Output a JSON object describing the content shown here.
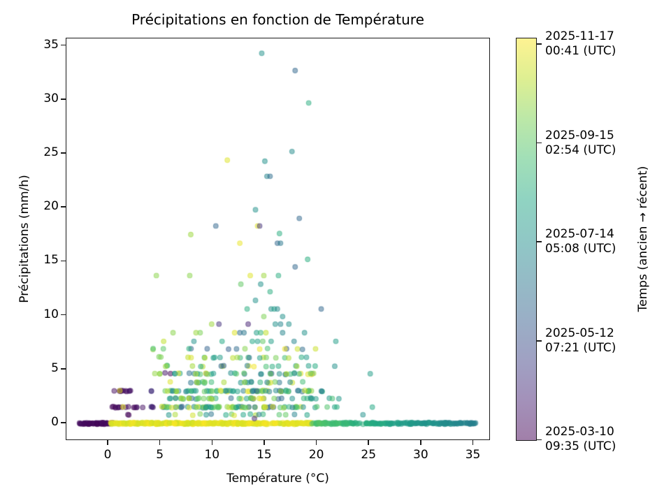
{
  "figure": {
    "background": "#ffffff"
  },
  "chart_data": {
    "type": "scatter",
    "title": "Précipitations en fonction de Température",
    "xlabel": "Température (°C)",
    "ylabel": "Précipitations (mm/h)",
    "xlim": [
      -4.02,
      36.64
    ],
    "ylim": [
      -1.62,
      35.68
    ],
    "xticks": [
      0,
      5,
      10,
      15,
      20,
      25,
      30,
      35
    ],
    "yticks": [
      0,
      5,
      10,
      15,
      20,
      25,
      30,
      35
    ],
    "grid": false,
    "marker": {
      "radius": 3.4,
      "fill_alpha": 0.5,
      "edge_alpha": 0.5,
      "edge_width": 1.1
    },
    "color_encoding": "time",
    "colormap": {
      "name": "viridis",
      "stops": [
        [
          0.0,
          "#440154"
        ],
        [
          0.1,
          "#482475"
        ],
        [
          0.2,
          "#414487"
        ],
        [
          0.3,
          "#355f8d"
        ],
        [
          0.4,
          "#2a788e"
        ],
        [
          0.5,
          "#21918c"
        ],
        [
          0.6,
          "#22a884"
        ],
        [
          0.7,
          "#44bf70"
        ],
        [
          0.8,
          "#7ad151"
        ],
        [
          0.9,
          "#bddf26"
        ],
        [
          1.0,
          "#fde725"
        ]
      ],
      "alpha": 0.5
    },
    "colorbar": {
      "label": "Temps (ancien → récent)",
      "ticks": [
        {
          "frac_from_top": 0.0156,
          "lines": [
            "2025-11-17",
            "00:41 (UTC)"
          ]
        },
        {
          "frac_from_top": 0.2617,
          "lines": [
            "2025-09-15",
            "02:54 (UTC)"
          ]
        },
        {
          "frac_from_top": 0.5078,
          "lines": [
            "2025-07-14",
            "05:08 (UTC)"
          ]
        },
        {
          "frac_from_top": 0.7539,
          "lines": [
            "2025-05-12",
            "07:21 (UTC)"
          ]
        },
        {
          "frac_from_top": 1.0,
          "lines": [
            "2025-03-10",
            "09:35 (UTC)"
          ]
        }
      ]
    },
    "points": [
      [
        14.7,
        34.3,
        0.5
      ],
      [
        17.9,
        32.7,
        0.33
      ],
      [
        19.2,
        29.7,
        0.62
      ],
      [
        17.6,
        25.2,
        0.48
      ],
      [
        11.4,
        24.4,
        0.95
      ],
      [
        15.0,
        24.3,
        0.5
      ],
      [
        15.2,
        22.9,
        0.45
      ],
      [
        15.5,
        22.9,
        0.36
      ],
      [
        14.1,
        19.8,
        0.5
      ],
      [
        18.3,
        19.0,
        0.33
      ],
      [
        10.3,
        18.3,
        0.33
      ],
      [
        14.3,
        18.3,
        0.95
      ],
      [
        14.5,
        18.3,
        0.15
      ],
      [
        7.9,
        17.5,
        0.85
      ],
      [
        16.4,
        17.6,
        0.62
      ],
      [
        12.6,
        16.7,
        0.97
      ],
      [
        16.2,
        16.7,
        0.33
      ],
      [
        16.5,
        16.7,
        0.4
      ],
      [
        19.1,
        15.2,
        0.62
      ],
      [
        17.9,
        14.5,
        0.33
      ],
      [
        4.6,
        13.7,
        0.82
      ],
      [
        7.8,
        13.7,
        0.82
      ],
      [
        13.6,
        13.7,
        0.95
      ],
      [
        14.9,
        13.7,
        0.85
      ],
      [
        16.3,
        13.7,
        0.62
      ],
      [
        12.7,
        12.9,
        0.75
      ],
      [
        14.6,
        12.9,
        0.5
      ],
      [
        15.5,
        12.2,
        0.62
      ],
      [
        14.1,
        11.4,
        0.5
      ],
      [
        13.3,
        10.6,
        0.62
      ],
      [
        15.6,
        10.6,
        0.5
      ],
      [
        15.9,
        10.6,
        0.55
      ],
      [
        16.2,
        10.6,
        0.48
      ],
      [
        20.4,
        10.6,
        0.33
      ],
      [
        14.9,
        9.9,
        0.8
      ],
      [
        16.7,
        9.9,
        0.5
      ],
      [
        9.9,
        9.2,
        0.85
      ],
      [
        10.6,
        9.2,
        0.15
      ],
      [
        13.4,
        9.2,
        0.1
      ],
      [
        16.0,
        9.2,
        0.5
      ],
      [
        16.5,
        9.2,
        0.45
      ],
      [
        17.3,
        9.2,
        0.5
      ],
      [
        6.2,
        8.4,
        0.82
      ],
      [
        8.4,
        8.4,
        0.85
      ],
      [
        8.8,
        8.4,
        0.8
      ],
      [
        12.1,
        8.4,
        0.95
      ],
      [
        12.6,
        8.4,
        0.35
      ],
      [
        13.0,
        8.4,
        0.4
      ],
      [
        14.2,
        8.4,
        0.55
      ],
      [
        14.6,
        8.4,
        0.65
      ],
      [
        15.1,
        8.4,
        0.9
      ],
      [
        16.7,
        8.4,
        0.45
      ],
      [
        18.8,
        8.4,
        0.5
      ],
      [
        5.3,
        7.6,
        0.9
      ],
      [
        8.2,
        7.6,
        0.5
      ],
      [
        10.9,
        7.6,
        0.6
      ],
      [
        13.8,
        7.6,
        0.6
      ],
      [
        14.3,
        7.6,
        0.55
      ],
      [
        14.8,
        7.6,
        0.75
      ],
      [
        15.6,
        7.6,
        0.55
      ],
      [
        17.8,
        7.6,
        0.45
      ],
      [
        21.8,
        7.6,
        0.55
      ],
      [
        21.7,
        5.3,
        0.5
      ],
      [
        25.1,
        4.6,
        0.55
      ],
      [
        24.4,
        0.8,
        0.5
      ],
      [
        25.3,
        1.5,
        0.6
      ],
      [
        14.0,
        0.45,
        0.12
      ]
    ],
    "bands": [
      {
        "y": 0.0,
        "jitter": 0.1,
        "segments": [
          {
            "x": [
              -2.8,
              0.45
            ],
            "n": 70,
            "t": [
              0.0,
              0.05
            ]
          },
          {
            "x": [
              0.2,
              19.6
            ],
            "n": 420,
            "t": [
              0.92,
              1.0
            ]
          },
          {
            "x": [
              19.5,
              35.2
            ],
            "n": 230,
            "t": [
              0.72,
              0.42
            ],
            "t_by_x": true
          }
        ]
      },
      {
        "y": 0.8,
        "jitter": 0.07,
        "segments": [
          {
            "x": [
              1.8,
              2.1
            ],
            "n": 2,
            "t": [
              0.0,
              0.05
            ]
          },
          {
            "x": [
              5.2,
              19.8
            ],
            "n": 18,
            "t": [
              0.3,
              1.0
            ]
          }
        ]
      },
      {
        "y": 1.5,
        "jitter": 0.08,
        "segments": [
          {
            "x": [
              0.3,
              3.3
            ],
            "n": 15,
            "t": [
              0.0,
              0.06
            ]
          },
          {
            "x": [
              1.3,
              1.6
            ],
            "n": 1,
            "t": [
              0.95,
              1.0
            ]
          },
          {
            "x": [
              3.9,
              4.7
            ],
            "n": 4,
            "t": [
              0.0,
              0.25
            ]
          },
          {
            "x": [
              5.0,
              19.4
            ],
            "n": 75,
            "t": [
              0.3,
              1.0
            ]
          },
          {
            "x": [
              19.6,
              22.0
            ],
            "n": 5,
            "t": [
              0.5,
              0.75
            ]
          }
        ]
      },
      {
        "y": 2.3,
        "jitter": 0.07,
        "segments": [
          {
            "x": [
              5.6,
              20.3
            ],
            "n": 45,
            "t": [
              0.3,
              1.0
            ]
          },
          {
            "x": [
              21.0,
              22.3
            ],
            "n": 3,
            "t": [
              0.5,
              0.7
            ]
          }
        ]
      },
      {
        "y": 3.0,
        "jitter": 0.08,
        "segments": [
          {
            "x": [
              0.4,
              2.2
            ],
            "n": 12,
            "t": [
              0.0,
              0.06
            ]
          },
          {
            "x": [
              0.9,
              1.2
            ],
            "n": 1,
            "t": [
              0.95,
              1.0
            ]
          },
          {
            "x": [
              3.9,
              4.3
            ],
            "n": 2,
            "t": [
              0.0,
              0.15
            ]
          },
          {
            "x": [
              5.3,
              19.5
            ],
            "n": 68,
            "t": [
              0.3,
              1.0
            ]
          },
          {
            "x": [
              19.8,
              21.0
            ],
            "n": 3,
            "t": [
              0.35,
              0.65
            ]
          }
        ]
      },
      {
        "y": 3.8,
        "jitter": 0.07,
        "segments": [
          {
            "x": [
              5.5,
              19.6
            ],
            "n": 26,
            "t": [
              0.35,
              1.0
            ]
          }
        ]
      },
      {
        "y": 4.6,
        "jitter": 0.08,
        "segments": [
          {
            "x": [
              4.4,
              5.1
            ],
            "n": 3,
            "t": [
              0.78,
              0.95
            ]
          },
          {
            "x": [
              5.4,
              6.0
            ],
            "n": 2,
            "t": [
              0.0,
              0.12
            ]
          },
          {
            "x": [
              6.2,
              19.8
            ],
            "n": 38,
            "t": [
              0.3,
              1.0
            ]
          }
        ]
      },
      {
        "y": 5.3,
        "jitter": 0.07,
        "segments": [
          {
            "x": [
              5.0,
              6.5
            ],
            "n": 3,
            "t": [
              0.6,
              0.9
            ]
          },
          {
            "x": [
              7.5,
              20.0
            ],
            "n": 16,
            "t": [
              0.3,
              1.0
            ]
          }
        ]
      },
      {
        "y": 6.1,
        "jitter": 0.07,
        "segments": [
          {
            "x": [
              4.5,
              5.2
            ],
            "n": 2,
            "t": [
              0.75,
              0.9
            ]
          },
          {
            "x": [
              6.8,
              20.3
            ],
            "n": 20,
            "t": [
              0.3,
              1.0
            ]
          }
        ]
      },
      {
        "y": 6.9,
        "jitter": 0.07,
        "segments": [
          {
            "x": [
              4.2,
              20.5
            ],
            "n": 16,
            "t": [
              0.3,
              1.0
            ]
          }
        ]
      }
    ]
  }
}
